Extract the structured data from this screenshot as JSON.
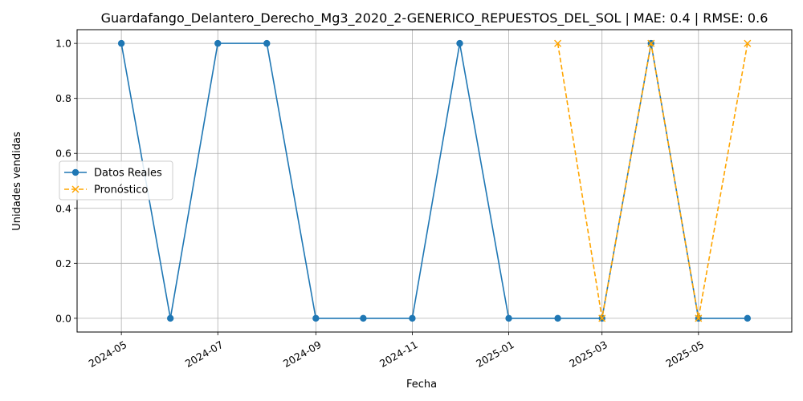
{
  "chart_data": {
    "type": "line",
    "title": "Guardafango_Delantero_Derecho_Mg3_2020_2-GENERICO_REPUESTOS_DEL_SOL | MAE: 0.4 | RMSE: 0.6",
    "xlabel": "Fecha",
    "ylabel": "Unidades vendidas",
    "x_ticks": [
      "2024-05",
      "2024-07",
      "2024-09",
      "2024-11",
      "2025-01",
      "2025-03",
      "2025-05"
    ],
    "y_ticks": [
      "0.0",
      "0.2",
      "0.4",
      "0.6",
      "0.8",
      "1.0"
    ],
    "ylim": [
      -0.05,
      1.05
    ],
    "xlim": [
      "2024-04-03",
      "2025-06-29"
    ],
    "grid": true,
    "legend_position": "center-left",
    "series": [
      {
        "name": "Datos Reales",
        "color": "#1f77b4",
        "style": "solid",
        "marker": "circle",
        "points": [
          {
            "x": "2024-05-01",
            "y": 1
          },
          {
            "x": "2024-06-01",
            "y": 0
          },
          {
            "x": "2024-07-01",
            "y": 1
          },
          {
            "x": "2024-08-01",
            "y": 1
          },
          {
            "x": "2024-09-01",
            "y": 0
          },
          {
            "x": "2024-10-01",
            "y": 0
          },
          {
            "x": "2024-11-01",
            "y": 0
          },
          {
            "x": "2024-12-01",
            "y": 1
          },
          {
            "x": "2025-01-01",
            "y": 0
          },
          {
            "x": "2025-02-01",
            "y": 0
          },
          {
            "x": "2025-03-01",
            "y": 0
          },
          {
            "x": "2025-04-01",
            "y": 1
          },
          {
            "x": "2025-05-01",
            "y": 0
          },
          {
            "x": "2025-06-01",
            "y": 0
          }
        ]
      },
      {
        "name": "Pronóstico",
        "color": "#ffa500",
        "style": "dashed",
        "marker": "x",
        "points": [
          {
            "x": "2025-02-01",
            "y": 1
          },
          {
            "x": "2025-03-01",
            "y": 0
          },
          {
            "x": "2025-04-01",
            "y": 1
          },
          {
            "x": "2025-05-01",
            "y": 0
          },
          {
            "x": "2025-06-01",
            "y": 1
          }
        ]
      }
    ]
  }
}
